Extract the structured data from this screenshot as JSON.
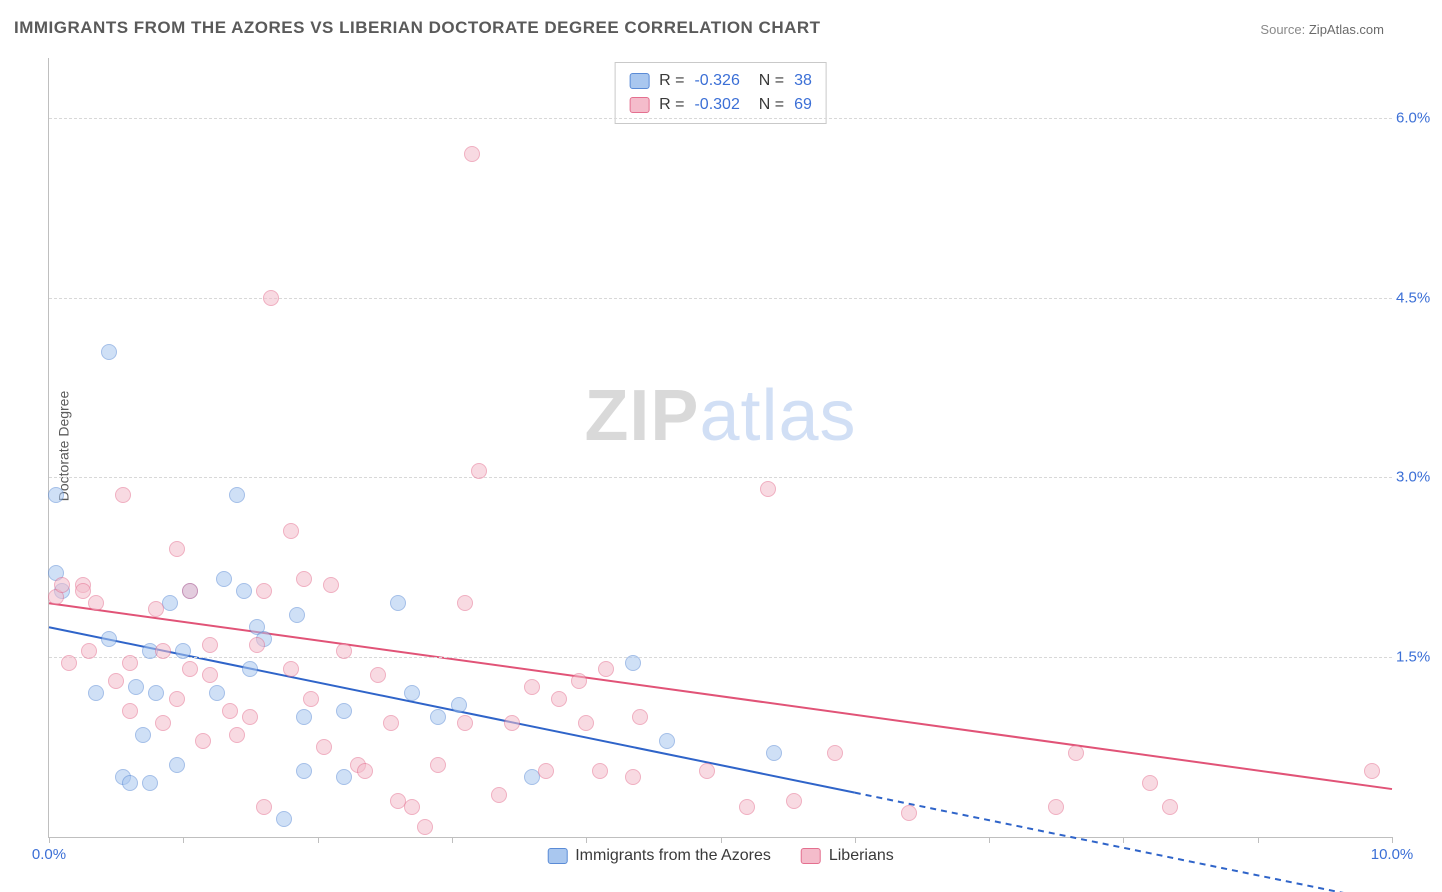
{
  "title": "IMMIGRANTS FROM THE AZORES VS LIBERIAN DOCTORATE DEGREE CORRELATION CHART",
  "source_label": "Source:",
  "source_value": "ZipAtlas.com",
  "ylabel": "Doctorate Degree",
  "watermark": {
    "a": "ZIP",
    "b": "atlas"
  },
  "chart": {
    "type": "scatter",
    "xlim": [
      0,
      10
    ],
    "ylim": [
      0,
      6.5
    ],
    "xticks": [
      0,
      1,
      2,
      3,
      4,
      5,
      6,
      7,
      8,
      9,
      10
    ],
    "xtick_labels": {
      "0": "0.0%",
      "10": "10.0%"
    },
    "yticks": [
      1.5,
      3.0,
      4.5,
      6.0
    ],
    "ytick_labels": [
      "1.5%",
      "3.0%",
      "4.5%",
      "6.0%"
    ],
    "grid_color": "#d8d8d8",
    "axis_color": "#bfbfbf",
    "tick_label_color": "#3b6fd6",
    "background_color": "#ffffff",
    "marker_size": 16,
    "marker_opacity": 0.55,
    "series": [
      {
        "name": "Immigrants from the Azores",
        "color_fill": "#a9c7ef",
        "color_stroke": "#5a8bd6",
        "r": -0.326,
        "n": 38,
        "trend": {
          "y_at_x0": 1.75,
          "y_at_x10": -0.55,
          "solid_until_x": 6.0,
          "color": "#2f64c9",
          "width": 2
        },
        "points": [
          [
            0.05,
            2.85
          ],
          [
            0.45,
            4.05
          ],
          [
            0.05,
            2.2
          ],
          [
            0.1,
            2.05
          ],
          [
            0.35,
            1.2
          ],
          [
            0.55,
            0.5
          ],
          [
            0.6,
            0.45
          ],
          [
            0.75,
            0.45
          ],
          [
            0.7,
            0.85
          ],
          [
            0.65,
            1.25
          ],
          [
            0.45,
            1.65
          ],
          [
            0.75,
            1.55
          ],
          [
            0.9,
            1.95
          ],
          [
            1.05,
            2.05
          ],
          [
            1.0,
            1.55
          ],
          [
            0.8,
            1.2
          ],
          [
            0.95,
            0.6
          ],
          [
            1.25,
            1.2
          ],
          [
            1.3,
            2.15
          ],
          [
            1.4,
            2.85
          ],
          [
            1.45,
            2.05
          ],
          [
            1.55,
            1.75
          ],
          [
            1.6,
            1.65
          ],
          [
            1.5,
            1.4
          ],
          [
            1.75,
            0.15
          ],
          [
            1.85,
            1.85
          ],
          [
            1.9,
            1.0
          ],
          [
            1.9,
            0.55
          ],
          [
            2.2,
            0.5
          ],
          [
            2.2,
            1.05
          ],
          [
            2.6,
            1.95
          ],
          [
            2.7,
            1.2
          ],
          [
            2.9,
            1.0
          ],
          [
            3.05,
            1.1
          ],
          [
            3.6,
            0.5
          ],
          [
            4.35,
            1.45
          ],
          [
            4.6,
            0.8
          ],
          [
            5.4,
            0.7
          ]
        ]
      },
      {
        "name": "Liberians",
        "color_fill": "#f4bccb",
        "color_stroke": "#e46f8f",
        "r": -0.302,
        "n": 69,
        "trend": {
          "y_at_x0": 1.95,
          "y_at_x10": 0.4,
          "solid_until_x": 10.0,
          "color": "#e15377",
          "width": 2
        },
        "points": [
          [
            0.05,
            2.0
          ],
          [
            0.1,
            2.1
          ],
          [
            0.15,
            1.45
          ],
          [
            0.25,
            2.1
          ],
          [
            0.25,
            2.05
          ],
          [
            0.3,
            1.55
          ],
          [
            0.35,
            1.95
          ],
          [
            0.55,
            2.85
          ],
          [
            0.5,
            1.3
          ],
          [
            0.6,
            1.45
          ],
          [
            0.6,
            1.05
          ],
          [
            0.8,
            1.9
          ],
          [
            0.85,
            1.55
          ],
          [
            0.95,
            2.4
          ],
          [
            0.85,
            0.95
          ],
          [
            1.05,
            2.05
          ],
          [
            1.05,
            1.4
          ],
          [
            0.95,
            1.15
          ],
          [
            1.15,
            0.8
          ],
          [
            1.2,
            1.6
          ],
          [
            1.2,
            1.35
          ],
          [
            1.35,
            1.05
          ],
          [
            1.4,
            0.85
          ],
          [
            1.5,
            1.0
          ],
          [
            1.55,
            1.6
          ],
          [
            1.6,
            2.05
          ],
          [
            1.65,
            4.5
          ],
          [
            1.6,
            0.25
          ],
          [
            1.8,
            2.55
          ],
          [
            1.8,
            1.4
          ],
          [
            1.9,
            2.15
          ],
          [
            1.95,
            1.15
          ],
          [
            2.05,
            0.75
          ],
          [
            2.1,
            2.1
          ],
          [
            2.2,
            1.55
          ],
          [
            2.3,
            0.6
          ],
          [
            2.35,
            0.55
          ],
          [
            2.45,
            1.35
          ],
          [
            2.55,
            0.95
          ],
          [
            2.6,
            0.3
          ],
          [
            2.7,
            0.25
          ],
          [
            2.8,
            0.08
          ],
          [
            2.9,
            0.6
          ],
          [
            3.1,
            0.95
          ],
          [
            3.2,
            3.05
          ],
          [
            3.1,
            1.95
          ],
          [
            3.15,
            5.7
          ],
          [
            3.35,
            0.35
          ],
          [
            3.45,
            0.95
          ],
          [
            3.6,
            1.25
          ],
          [
            3.7,
            0.55
          ],
          [
            3.8,
            1.15
          ],
          [
            3.95,
            1.3
          ],
          [
            4.0,
            0.95
          ],
          [
            4.1,
            0.55
          ],
          [
            4.15,
            1.4
          ],
          [
            4.35,
            0.5
          ],
          [
            4.4,
            1.0
          ],
          [
            4.9,
            0.55
          ],
          [
            5.2,
            0.25
          ],
          [
            5.35,
            2.9
          ],
          [
            5.55,
            0.3
          ],
          [
            5.85,
            0.7
          ],
          [
            6.4,
            0.2
          ],
          [
            7.5,
            0.25
          ],
          [
            7.65,
            0.7
          ],
          [
            8.2,
            0.45
          ],
          [
            8.35,
            0.25
          ],
          [
            9.85,
            0.55
          ]
        ]
      }
    ]
  },
  "legend_bottom": [
    {
      "label": "Immigrants from the Azores",
      "fill": "#a9c7ef",
      "stroke": "#5a8bd6"
    },
    {
      "label": "Liberians",
      "fill": "#f4bccb",
      "stroke": "#e46f8f"
    }
  ]
}
